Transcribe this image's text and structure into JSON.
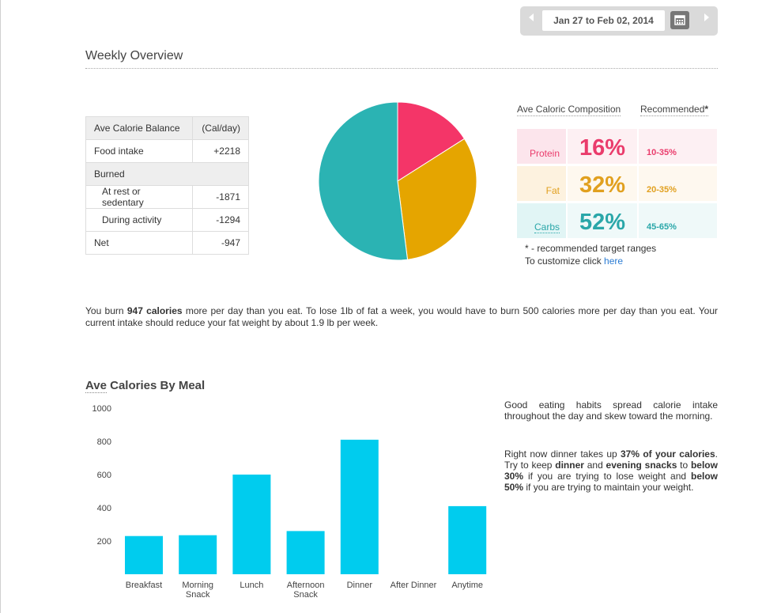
{
  "date_range": {
    "label": "Jan 27 to Feb 02, 2014",
    "prev_icon": "chevron-left-icon",
    "next_icon": "chevron-right-icon",
    "calendar_icon": "calendar-icon"
  },
  "overview": {
    "title": "Weekly Overview"
  },
  "balance_table": {
    "header": [
      "Ave Calorie Balance",
      "(Cal/day)"
    ],
    "rows": [
      {
        "label": "Food intake",
        "value": "+2218"
      },
      {
        "label": "Burned",
        "value": ""
      },
      {
        "label": "At rest or sedentary",
        "value": "-1871"
      },
      {
        "label": "During activity",
        "value": "-1294"
      },
      {
        "label": "Net",
        "value": "-947"
      }
    ]
  },
  "pie": {
    "slices": [
      {
        "name": "Protein",
        "value": 16,
        "color": "#f43568"
      },
      {
        "name": "Fat",
        "value": 32,
        "color": "#e5a500"
      },
      {
        "name": "Carbs",
        "value": 52,
        "color": "#2bb3b3"
      }
    ]
  },
  "composition": {
    "col1": "Ave Caloric Composition",
    "col2": "Recommended",
    "col2_mark": "*",
    "rows": [
      {
        "name": "Protein",
        "pct": "16%",
        "rec": "10-35%",
        "color": "#ea3c6c",
        "bg_label": "#fce5ec",
        "bg_pct": "#fdf0f3"
      },
      {
        "name": "Fat",
        "pct": "32%",
        "rec": "20-35%",
        "color": "#e1a01f",
        "bg_label": "#fdf2df",
        "bg_pct": "#fef8ef"
      },
      {
        "name": "Carbs",
        "pct": "52%",
        "rec": "45-65%",
        "color": "#2aa7a9",
        "bg_label": "#e1f5f5",
        "bg_pct": "#eff9f9"
      }
    ],
    "note1": "* - recommended target ranges",
    "note2_prefix": "To customize click ",
    "note2_link": "here"
  },
  "summary": {
    "p1": "You burn ",
    "b1": "947 calories",
    "p2": " more per day than you eat. To lose 1lb of fat a week, you would have to burn 500 calories more per day than you eat. Your current intake should reduce your fat weight by about 1.9 lb per week."
  },
  "meal_chart": {
    "title_u": "Ave",
    "title_rest": " Calories By Meal"
  },
  "chart_data": {
    "type": "bar",
    "categories": [
      "Breakfast",
      "Morning Snack",
      "Lunch",
      "Afternoon Snack",
      "Dinner",
      "After Dinner",
      "Anytime"
    ],
    "category_lines": [
      [
        "Breakfast"
      ],
      [
        "Morning",
        "Snack"
      ],
      [
        "Lunch"
      ],
      [
        "Afternoon",
        "Snack"
      ],
      [
        "Dinner"
      ],
      [
        "After Dinner"
      ],
      [
        "Anytime"
      ]
    ],
    "values": [
      230,
      235,
      600,
      260,
      810,
      0,
      410
    ],
    "yticks": [
      200,
      400,
      600,
      800,
      1000
    ],
    "ylim": [
      0,
      1000
    ],
    "color": "#00ccee"
  },
  "advice": {
    "p1": "Good eating habits spread calorie intake throughout the day and skew toward the morning.",
    "a": "Right now dinner takes up ",
    "b": "37% of your calories",
    "c": ". Try to keep ",
    "d": "dinner",
    "e": " and ",
    "f": "evening snacks",
    "g": " to ",
    "h": "below 30%",
    "i": " if you are trying to lose weight and ",
    "j": "below 50%",
    "k": " if you are trying to maintain your weight."
  }
}
